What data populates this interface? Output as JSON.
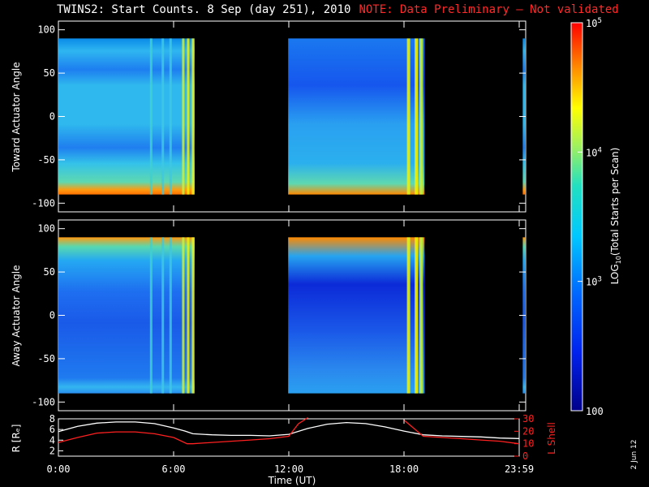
{
  "header": {
    "title": "TWINS2: Start Counts.  8 Sep (day 251), 2010",
    "note": "NOTE: Data Preliminary – Not validated",
    "note_color": "#ff2020"
  },
  "side_date": "2 Jun 12",
  "chart_data": [
    {
      "type": "heatmap",
      "panel": "toward",
      "ylabel": "Toward Actuator Angle",
      "ylim": [
        -110,
        110
      ],
      "yticks": [
        "100",
        "50",
        "0",
        "-50",
        "-100"
      ],
      "xlim_hours": [
        0,
        24
      ],
      "data_segments_hours": [
        [
          0,
          7.0
        ],
        [
          11.8,
          18.8
        ],
        [
          23.85,
          24
        ]
      ],
      "colorscale": "log10",
      "zlim": [
        100,
        100000
      ]
    },
    {
      "type": "heatmap",
      "panel": "away",
      "ylabel": "Away Actuator Angle",
      "ylim": [
        -110,
        110
      ],
      "yticks": [
        "100",
        "50",
        "0",
        "-50",
        "-100"
      ],
      "xlim_hours": [
        0,
        24
      ],
      "data_segments_hours": [
        [
          0,
          7.0
        ],
        [
          11.8,
          18.8
        ],
        [
          23.85,
          24
        ]
      ],
      "colorscale": "log10",
      "zlim": [
        100,
        100000
      ]
    },
    {
      "type": "line",
      "panel": "orbit",
      "xlabel": "Time (UT)",
      "xticks": [
        "0:00",
        "6:00",
        "12:00",
        "18:00",
        "23:59"
      ],
      "ylabel_left": "R [Rₑ]",
      "ylabel_right": "L Shell",
      "left_yticks": [
        "8",
        "6",
        "4",
        "2"
      ],
      "right_yticks": [
        "30",
        "20",
        "10",
        "0"
      ],
      "left_ylim": [
        1,
        8
      ],
      "right_ylim": [
        0,
        30
      ],
      "series": [
        {
          "name": "R [Rₑ]",
          "color": "#ffffff",
          "x": [
            0,
            1,
            2,
            3,
            4,
            5,
            6,
            6.6,
            7,
            8,
            9,
            10,
            11,
            12,
            13,
            14,
            15,
            16,
            17,
            18,
            19,
            20,
            21,
            22,
            23,
            24
          ],
          "y": [
            5.6,
            6.6,
            7.2,
            7.4,
            7.4,
            7.1,
            6.3,
            5.7,
            5.2,
            5.0,
            4.9,
            4.9,
            4.8,
            5.1,
            6.2,
            7.0,
            7.3,
            7.1,
            6.5,
            5.7,
            5.0,
            4.8,
            4.7,
            4.6,
            4.4,
            4.3
          ]
        },
        {
          "name": "L Shell",
          "color": "#ff2020",
          "x": [
            0,
            1,
            2,
            3,
            4,
            5,
            6,
            6.7,
            7,
            8,
            9,
            10,
            11,
            12,
            12.5,
            13
          ],
          "y": [
            11,
            15,
            18.5,
            19.5,
            19.5,
            18,
            15,
            10,
            10,
            11,
            12,
            13,
            14,
            16,
            26,
            31
          ]
        },
        {
          "name": "L Shell (after gap)",
          "color": "#ff2020",
          "x": [
            18,
            19,
            20,
            21,
            22,
            23,
            24
          ],
          "y": [
            29,
            16,
            15,
            14,
            13,
            12,
            10
          ]
        }
      ]
    }
  ],
  "colorbar": {
    "label_prefix": "LOG",
    "label_sub": "10",
    "label_suffix": "(Total Starts per Scan)",
    "tick_labels": [
      {
        "text": "10",
        "sup": "5",
        "value": 100000
      },
      {
        "text": "10",
        "sup": "4",
        "value": 10000
      },
      {
        "text": "10",
        "sup": "3",
        "value": 1000
      },
      {
        "text": "100",
        "sup": "",
        "value": 100
      }
    ]
  }
}
